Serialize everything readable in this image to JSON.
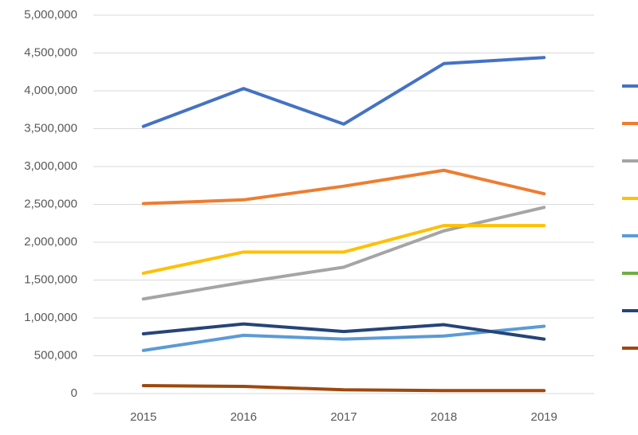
{
  "chart_data": {
    "type": "line",
    "categories": [
      "2015",
      "2016",
      "2017",
      "2018",
      "2019"
    ],
    "series": [
      {
        "color": "#4472c4",
        "values": [
          3530000,
          4030000,
          3560000,
          4360000,
          4440000
        ]
      },
      {
        "color": "#ed7d31",
        "values": [
          2510000,
          2560000,
          2740000,
          2950000,
          2640000
        ]
      },
      {
        "color": "#a5a5a5",
        "values": [
          1250000,
          1470000,
          1670000,
          2150000,
          2460000
        ]
      },
      {
        "color": "#ffc000",
        "values": [
          1590000,
          1870000,
          1870000,
          2220000,
          2220000
        ]
      },
      {
        "color": "#5b9bd5",
        "values": [
          570000,
          770000,
          720000,
          760000,
          890000
        ]
      },
      {
        "color": "#70ad47",
        "values": [
          null,
          null,
          null,
          null,
          null
        ]
      },
      {
        "color": "#264478",
        "values": [
          790000,
          920000,
          820000,
          910000,
          720000
        ]
      },
      {
        "color": "#9e480e",
        "values": [
          105000,
          95000,
          50000,
          40000,
          40000
        ]
      }
    ],
    "ylim": [
      0,
      5000000
    ],
    "yticks": [
      0,
      {
        "value": 500000,
        "label": "500,000"
      },
      {
        "value": 1000000,
        "label": "1,000,000"
      },
      {
        "value": 1500000,
        "label": "1,500,000"
      },
      {
        "value": 2000000,
        "label": "2,000,000"
      },
      {
        "value": 2500000,
        "label": "2,500,000"
      },
      {
        "value": 3000000,
        "label": "3,000,000"
      },
      {
        "value": 3500000,
        "label": "3,500,000"
      },
      {
        "value": 4000000,
        "label": "4,000,000"
      },
      {
        "value": 4500000,
        "label": "4,500,000"
      },
      {
        "value": 5000000,
        "label": "5,000,000"
      }
    ],
    "grid": true
  }
}
